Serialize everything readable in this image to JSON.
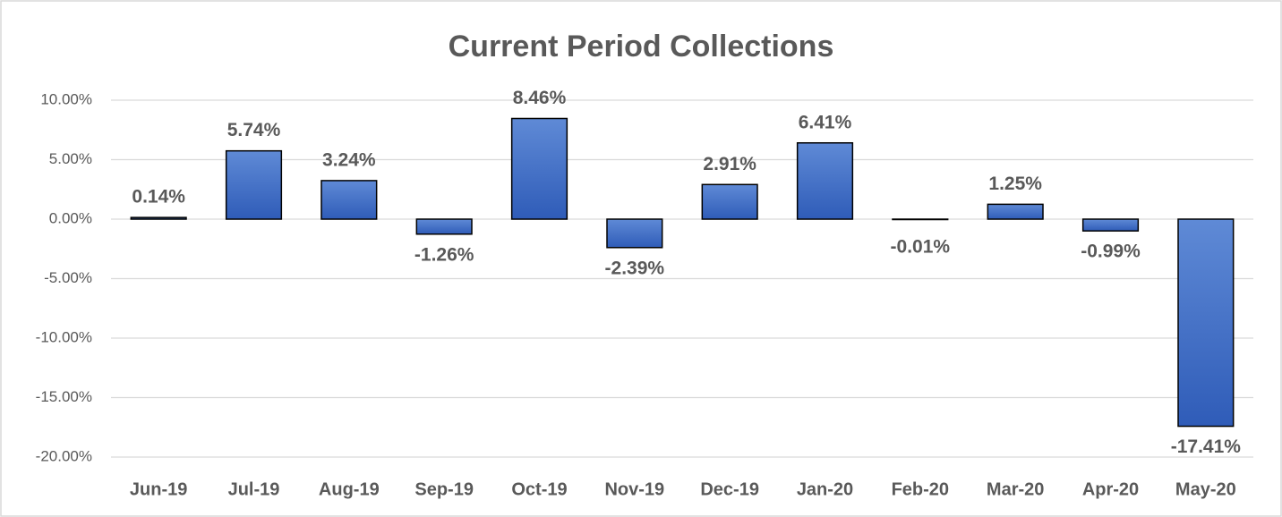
{
  "chart_data": {
    "type": "bar",
    "title": "Current Period Collections",
    "categories": [
      "Jun-19",
      "Jul-19",
      "Aug-19",
      "Sep-19",
      "Oct-19",
      "Nov-19",
      "Dec-19",
      "Jan-20",
      "Feb-20",
      "Mar-20",
      "Apr-20",
      "May-20"
    ],
    "values": [
      0.14,
      5.74,
      3.24,
      -1.26,
      8.46,
      -2.39,
      2.91,
      6.41,
      -0.01,
      1.25,
      -0.99,
      -17.41
    ],
    "value_labels": [
      "0.14%",
      "5.74%",
      "3.24%",
      "-1.26%",
      "8.46%",
      "-2.39%",
      "2.91%",
      "6.41%",
      "-0.01%",
      "1.25%",
      "-0.99%",
      "-17.41%"
    ],
    "color": "#4472c4",
    "ylim": [
      -20,
      10
    ],
    "yticks": [
      {
        "value": -20,
        "label": "-20.00%"
      },
      {
        "value": -15,
        "label": "-15.00%"
      },
      {
        "value": -10,
        "label": "-10.00%"
      },
      {
        "value": -5,
        "label": "-5.00%"
      },
      {
        "value": 0,
        "label": "0.00%"
      },
      {
        "value": 5,
        "label": "5.00%"
      },
      {
        "value": 10,
        "label": "10.00%"
      }
    ],
    "grid": true
  }
}
